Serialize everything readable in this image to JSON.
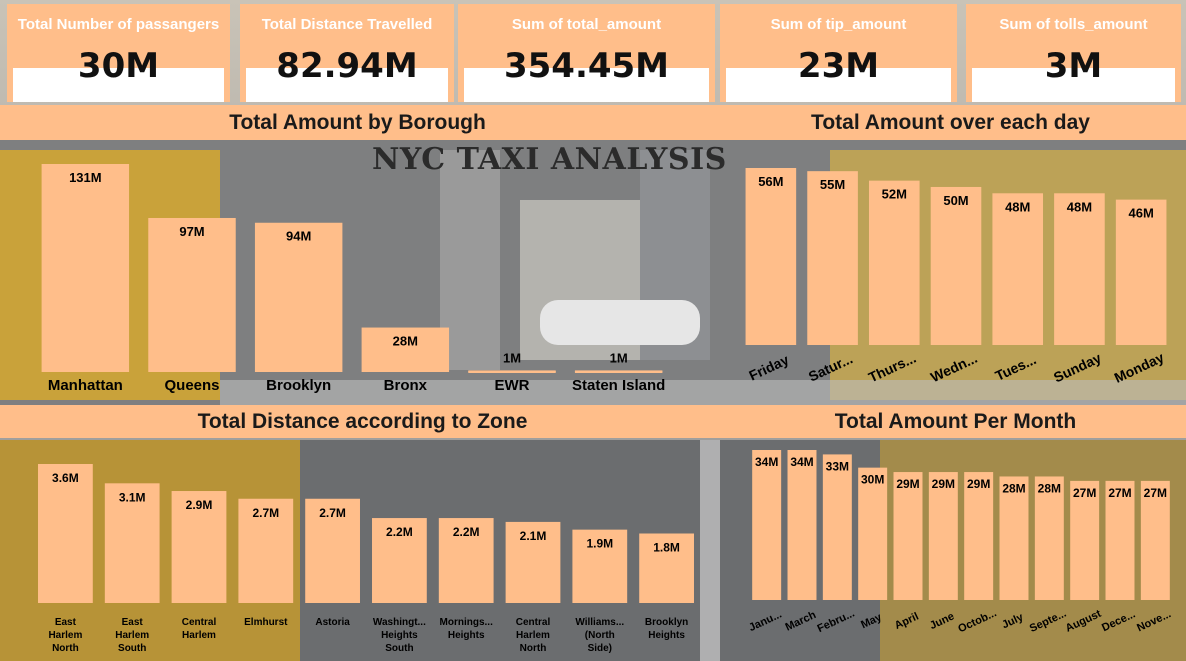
{
  "report_title": "NYC TAXI ANALYSIS",
  "colors": {
    "bar": "#ffbe8a",
    "header": "#ffbe8a",
    "kpi_text": "#ffffff",
    "value_text": "#111111"
  },
  "kpis": [
    {
      "title": "Total Number of passangers",
      "value": "30M"
    },
    {
      "title": "Total Distance Travelled",
      "value": "82.94M"
    },
    {
      "title": "Sum of total_amount",
      "value": "354.45M"
    },
    {
      "title": "Sum of tip_amount",
      "value": "23M"
    },
    {
      "title": "Sum of tolls_amount",
      "value": "3M"
    }
  ],
  "chart_data": [
    {
      "type": "bar",
      "title": "Total Amount by Borough",
      "categories": [
        "Manhattan",
        "Queens",
        "Brooklyn",
        "Bronx",
        "EWR",
        "Staten Island"
      ],
      "values": [
        131,
        97,
        94,
        28,
        1,
        1
      ],
      "labels": [
        "131M",
        "97M",
        "94M",
        "28M",
        "1M",
        "1M"
      ]
    },
    {
      "type": "bar",
      "title": "Total Amount over each day",
      "categories": [
        "Friday",
        "Satur...",
        "Thurs...",
        "Wedn...",
        "Tues...",
        "Sunday",
        "Monday"
      ],
      "values": [
        56,
        55,
        52,
        50,
        48,
        48,
        46
      ],
      "labels": [
        "56M",
        "55M",
        "52M",
        "50M",
        "48M",
        "48M",
        "46M"
      ]
    },
    {
      "type": "bar",
      "title": "Total Distance according to Zone",
      "categories": [
        "East Harlem North",
        "East Harlem South",
        "Central Harlem",
        "Elmhurst",
        "Astoria",
        "Washingt... Heights South",
        "Mornings... Heights",
        "Central Harlem North",
        "Williams... (North Side)",
        "Brooklyn Heights"
      ],
      "values": [
        3.6,
        3.1,
        2.9,
        2.7,
        2.7,
        2.2,
        2.2,
        2.1,
        1.9,
        1.8
      ],
      "labels": [
        "3.6M",
        "3.1M",
        "2.9M",
        "2.7M",
        "2.7M",
        "2.2M",
        "2.2M",
        "2.1M",
        "1.9M",
        "1.8M"
      ]
    },
    {
      "type": "bar",
      "title": "Total Amount Per Month",
      "categories": [
        "Janu...",
        "March",
        "Febru...",
        "May",
        "April",
        "June",
        "Octob...",
        "July",
        "Septe...",
        "August",
        "Dece...",
        "Nove..."
      ],
      "values": [
        34,
        34,
        33,
        30,
        29,
        29,
        29,
        28,
        28,
        27,
        27,
        27
      ],
      "labels": [
        "34M",
        "34M",
        "33M",
        "30M",
        "29M",
        "29M",
        "29M",
        "28M",
        "28M",
        "27M",
        "27M",
        "27M"
      ]
    }
  ]
}
